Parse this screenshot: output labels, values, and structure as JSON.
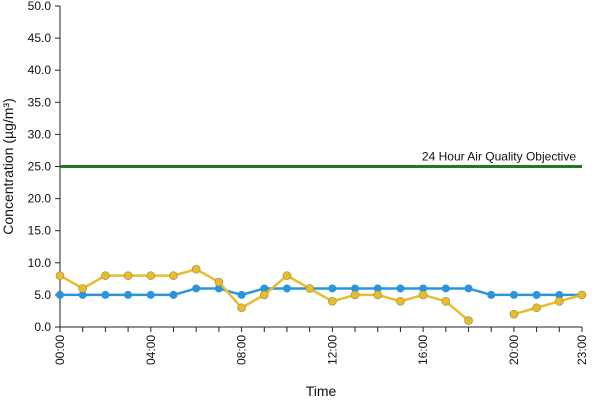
{
  "chart_data": {
    "type": "line",
    "title": "",
    "xlabel": "Time",
    "ylabel": "Concentration (µg/m³)",
    "ylim": [
      0,
      50
    ],
    "y_ticks": [
      "0.0",
      "5.0",
      "10.0",
      "15.0",
      "20.0",
      "25.0",
      "30.0",
      "35.0",
      "40.0",
      "45.0",
      "50.0"
    ],
    "x": [
      0,
      1,
      2,
      3,
      4,
      5,
      6,
      7,
      8,
      9,
      10,
      11,
      12,
      13,
      14,
      15,
      16,
      17,
      18,
      19,
      20,
      21,
      22,
      23
    ],
    "x_tick_labels": [
      {
        "hour": 0,
        "label": "00:00"
      },
      {
        "hour": 4,
        "label": "04:00"
      },
      {
        "hour": 8,
        "label": "08:00"
      },
      {
        "hour": 12,
        "label": "12:00"
      },
      {
        "hour": 16,
        "label": "16:00"
      },
      {
        "hour": 20,
        "label": "20:00"
      },
      {
        "hour": 23,
        "label": "23:00"
      }
    ],
    "series": [
      {
        "color": "#2b95dc",
        "values": [
          5,
          5,
          5,
          5,
          5,
          5,
          6,
          6,
          5,
          6,
          6,
          6,
          6,
          6,
          6,
          6,
          6,
          6,
          6,
          5,
          5,
          5,
          5,
          5
        ]
      },
      {
        "color": "#e8bd2c",
        "values": [
          8,
          6,
          8,
          8,
          8,
          8,
          9,
          7,
          3,
          5,
          8,
          6,
          4,
          5,
          5,
          4,
          5,
          4,
          1,
          null,
          2,
          3,
          4,
          5
        ]
      }
    ],
    "reference_line": {
      "value": 25,
      "label": "24 Hour Air Quality Objective",
      "color": "#1f7a1f"
    },
    "grid": false,
    "legend": "none"
  }
}
